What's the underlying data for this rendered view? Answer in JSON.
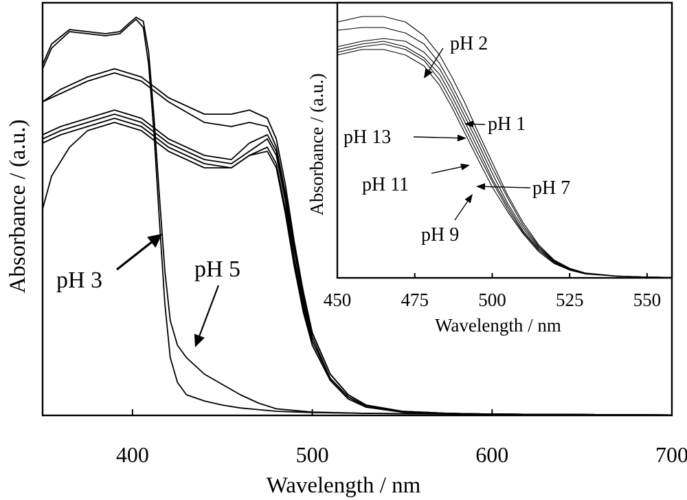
{
  "chart_data": [
    {
      "type": "line",
      "panel": "main",
      "xlabel": "Wavelength / nm",
      "ylabel": "Absorbance / (a.u.)",
      "xlim": [
        350,
        700
      ],
      "ylim": [
        0,
        1
      ],
      "x_ticks": [
        "400",
        "500",
        "600",
        "700"
      ],
      "grid": false,
      "series": [
        {
          "name": "pH 3",
          "x": [
            350,
            355,
            365,
            375,
            385,
            393,
            398,
            402,
            406,
            409,
            412,
            415,
            418,
            421,
            425,
            430,
            440,
            450,
            460,
            470,
            480,
            500,
            530,
            560,
            600,
            650,
            700
          ],
          "y": [
            0.84,
            0.89,
            0.93,
            0.925,
            0.92,
            0.925,
            0.945,
            0.96,
            0.94,
            0.85,
            0.68,
            0.47,
            0.27,
            0.14,
            0.08,
            0.05,
            0.035,
            0.025,
            0.018,
            0.014,
            0.01,
            0.007,
            0.005,
            0.004,
            0.003,
            0.002,
            0.001
          ]
        },
        {
          "name": "pH 5",
          "x": [
            350,
            355,
            365,
            375,
            385,
            393,
            398,
            402,
            406,
            409,
            412,
            415,
            418,
            421,
            425,
            430,
            440,
            450,
            460,
            470,
            480,
            500,
            530,
            560,
            600,
            650,
            700
          ],
          "y": [
            0.85,
            0.9,
            0.935,
            0.93,
            0.925,
            0.93,
            0.95,
            0.965,
            0.955,
            0.88,
            0.72,
            0.53,
            0.35,
            0.23,
            0.17,
            0.14,
            0.1,
            0.075,
            0.05,
            0.03,
            0.016,
            0.008,
            0.005,
            0.004,
            0.003,
            0.002,
            0.001
          ]
        },
        {
          "name": "pH 1",
          "x": [
            350,
            360,
            375,
            390,
            405,
            420,
            440,
            455,
            465,
            475,
            480,
            485,
            490,
            495,
            500,
            510,
            520,
            530,
            550,
            575,
            600,
            650,
            700
          ],
          "y": [
            0.76,
            0.79,
            0.82,
            0.84,
            0.82,
            0.77,
            0.73,
            0.73,
            0.74,
            0.72,
            0.67,
            0.56,
            0.42,
            0.3,
            0.2,
            0.1,
            0.05,
            0.025,
            0.01,
            0.005,
            0.003,
            0.002,
            0.001
          ]
        },
        {
          "name": "pH 2",
          "x": [
            350,
            360,
            375,
            390,
            405,
            420,
            440,
            455,
            465,
            475,
            480,
            485,
            490,
            495,
            500,
            510,
            520,
            530,
            550,
            575,
            600,
            650,
            700
          ],
          "y": [
            0.76,
            0.78,
            0.81,
            0.83,
            0.81,
            0.76,
            0.71,
            0.7,
            0.71,
            0.7,
            0.65,
            0.54,
            0.41,
            0.29,
            0.2,
            0.1,
            0.05,
            0.025,
            0.01,
            0.005,
            0.003,
            0.002,
            0.001
          ]
        },
        {
          "name": "pH 7",
          "x": [
            350,
            360,
            375,
            390,
            405,
            420,
            440,
            455,
            465,
            475,
            480,
            485,
            490,
            495,
            500,
            510,
            520,
            530,
            550,
            575,
            600,
            650,
            700
          ],
          "y": [
            0.68,
            0.7,
            0.72,
            0.74,
            0.72,
            0.67,
            0.63,
            0.62,
            0.66,
            0.68,
            0.64,
            0.53,
            0.4,
            0.28,
            0.19,
            0.09,
            0.045,
            0.022,
            0.009,
            0.005,
            0.003,
            0.002,
            0.001
          ]
        },
        {
          "name": "pH 9",
          "x": [
            350,
            360,
            375,
            390,
            405,
            420,
            440,
            455,
            465,
            475,
            480,
            485,
            490,
            495,
            500,
            510,
            520,
            530,
            550,
            575,
            600,
            650,
            700
          ],
          "y": [
            0.67,
            0.69,
            0.71,
            0.73,
            0.71,
            0.66,
            0.62,
            0.61,
            0.64,
            0.67,
            0.63,
            0.52,
            0.38,
            0.27,
            0.18,
            0.09,
            0.045,
            0.022,
            0.009,
            0.005,
            0.003,
            0.002,
            0.001
          ]
        },
        {
          "name": "pH 11",
          "x": [
            350,
            360,
            375,
            390,
            405,
            420,
            440,
            455,
            465,
            475,
            480,
            485,
            490,
            495,
            500,
            510,
            520,
            530,
            550,
            575,
            600,
            650,
            700
          ],
          "y": [
            0.66,
            0.68,
            0.7,
            0.72,
            0.7,
            0.65,
            0.61,
            0.6,
            0.63,
            0.65,
            0.61,
            0.5,
            0.37,
            0.26,
            0.17,
            0.085,
            0.04,
            0.02,
            0.008,
            0.004,
            0.003,
            0.002,
            0.001
          ]
        },
        {
          "name": "pH 13",
          "x": [
            350,
            355,
            365,
            375,
            390,
            405,
            420,
            440,
            455,
            465,
            475,
            480,
            485,
            490,
            495,
            500,
            510,
            520,
            530,
            550,
            575,
            600,
            650,
            700
          ],
          "y": [
            0.5,
            0.58,
            0.65,
            0.69,
            0.71,
            0.69,
            0.64,
            0.6,
            0.6,
            0.63,
            0.64,
            0.6,
            0.49,
            0.36,
            0.25,
            0.17,
            0.085,
            0.04,
            0.02,
            0.008,
            0.004,
            0.003,
            0.002,
            0.001
          ]
        }
      ],
      "annotations": [
        {
          "text": "pH 3",
          "points_to": {
            "x": 418,
            "y": 0.47
          }
        },
        {
          "text": "pH 5",
          "points_to": {
            "x": 428,
            "y": 0.17
          }
        }
      ]
    },
    {
      "type": "line",
      "panel": "inset",
      "xlabel": "Wavelength / nm",
      "ylabel": "Absorbance / (a.u.)",
      "xlim": [
        450,
        558
      ],
      "ylim": [
        0,
        1
      ],
      "x_ticks": [
        "450",
        "475",
        "500",
        "525",
        "550"
      ],
      "grid": false,
      "series": [
        {
          "name": "pH 1",
          "x": [
            450,
            458,
            465,
            472,
            478,
            483,
            487,
            491,
            495,
            500,
            505,
            510,
            515,
            520,
            525,
            530,
            540,
            550,
            558
          ],
          "y": [
            0.93,
            0.95,
            0.95,
            0.93,
            0.88,
            0.81,
            0.73,
            0.64,
            0.54,
            0.42,
            0.3,
            0.2,
            0.12,
            0.065,
            0.035,
            0.018,
            0.007,
            0.003,
            0.002
          ]
        },
        {
          "name": "pH 2",
          "x": [
            450,
            458,
            465,
            472,
            478,
            483,
            487,
            491,
            495,
            500,
            505,
            510,
            515,
            520,
            525,
            530,
            540,
            550,
            558
          ],
          "y": [
            0.9,
            0.91,
            0.91,
            0.89,
            0.85,
            0.78,
            0.7,
            0.61,
            0.52,
            0.4,
            0.29,
            0.19,
            0.115,
            0.062,
            0.033,
            0.017,
            0.007,
            0.003,
            0.002
          ]
        },
        {
          "name": "pH 7",
          "x": [
            450,
            458,
            465,
            472,
            478,
            483,
            487,
            491,
            495,
            500,
            505,
            510,
            515,
            520,
            525,
            530,
            540,
            550,
            558
          ],
          "y": [
            0.84,
            0.86,
            0.87,
            0.86,
            0.82,
            0.76,
            0.68,
            0.59,
            0.5,
            0.38,
            0.27,
            0.18,
            0.11,
            0.06,
            0.032,
            0.016,
            0.006,
            0.003,
            0.002
          ]
        },
        {
          "name": "pH 9",
          "x": [
            450,
            458,
            465,
            472,
            478,
            483,
            487,
            491,
            495,
            500,
            505,
            510,
            515,
            520,
            525,
            530,
            540,
            550,
            558
          ],
          "y": [
            0.83,
            0.85,
            0.86,
            0.84,
            0.8,
            0.74,
            0.66,
            0.57,
            0.48,
            0.36,
            0.26,
            0.17,
            0.105,
            0.057,
            0.03,
            0.015,
            0.006,
            0.003,
            0.002
          ]
        },
        {
          "name": "pH 11",
          "x": [
            450,
            458,
            465,
            472,
            478,
            483,
            487,
            491,
            495,
            500,
            505,
            510,
            515,
            520,
            525,
            530,
            540,
            550,
            558
          ],
          "y": [
            0.82,
            0.84,
            0.85,
            0.83,
            0.79,
            0.72,
            0.64,
            0.55,
            0.46,
            0.35,
            0.25,
            0.165,
            0.1,
            0.055,
            0.029,
            0.015,
            0.006,
            0.003,
            0.002
          ]
        },
        {
          "name": "pH 13",
          "x": [
            450,
            458,
            465,
            472,
            478,
            483,
            487,
            491,
            495,
            500,
            505,
            510,
            515,
            520,
            525,
            530,
            540,
            550,
            558
          ],
          "y": [
            0.81,
            0.83,
            0.83,
            0.81,
            0.77,
            0.7,
            0.62,
            0.53,
            0.44,
            0.33,
            0.24,
            0.16,
            0.095,
            0.052,
            0.028,
            0.014,
            0.006,
            0.003,
            0.002
          ]
        }
      ],
      "annotations": [
        {
          "text": "pH 2",
          "points_to": {
            "x": 476,
            "y": 0.86
          }
        },
        {
          "text": "pH 1",
          "points_to": {
            "x": 492,
            "y": 0.62
          }
        },
        {
          "text": "pH 13",
          "points_to": {
            "x": 490,
            "y": 0.53
          }
        },
        {
          "text": "pH 11",
          "points_to": {
            "x": 491,
            "y": 0.43
          }
        },
        {
          "text": "pH 7",
          "points_to": {
            "x": 494,
            "y": 0.35
          }
        },
        {
          "text": "pH 9",
          "points_to": {
            "x": 492,
            "y": 0.33
          }
        }
      ]
    }
  ]
}
